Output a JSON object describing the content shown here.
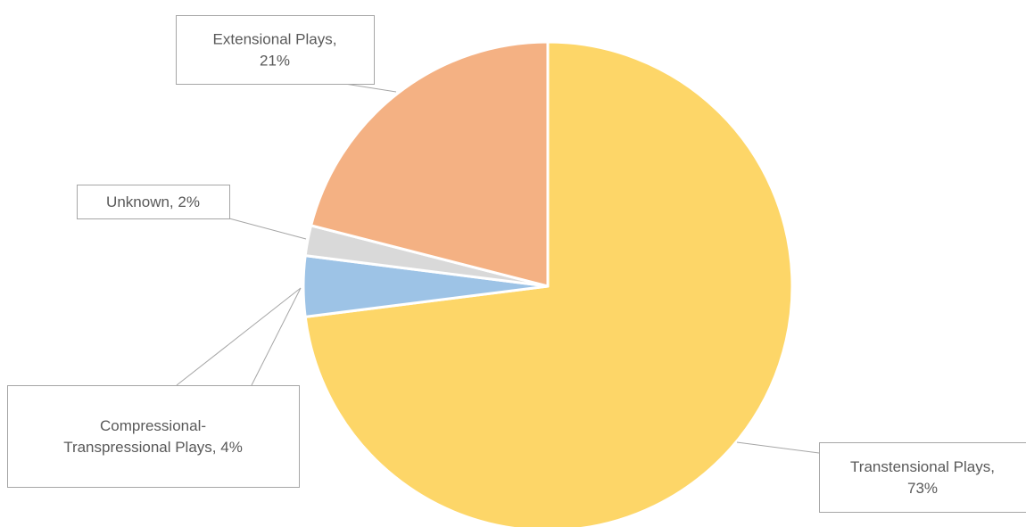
{
  "chart_data": {
    "type": "pie",
    "title": "",
    "series": [
      {
        "slices": [
          {
            "label": "Transtensional Plays",
            "value": 73,
            "color": "#FDD668",
            "label_lines": [
              "Transtensional Plays,",
              "73%"
            ]
          },
          {
            "label": "Compressional-Transpressional Plays",
            "value": 4,
            "color": "#9DC3E6",
            "label_lines": [
              "Compressional-",
              "Transpressional Plays, 4%"
            ]
          },
          {
            "label": "Unknown",
            "value": 2,
            "color": "#D9D9D9",
            "label_lines": [
              "Unknown, 2%"
            ]
          },
          {
            "label": "Extensional Plays",
            "value": 21,
            "color": "#F4B183",
            "label_lines": [
              "Extensional Plays,",
              "21%"
            ]
          }
        ]
      }
    ],
    "legend": "none",
    "data_labels": "callouts"
  }
}
